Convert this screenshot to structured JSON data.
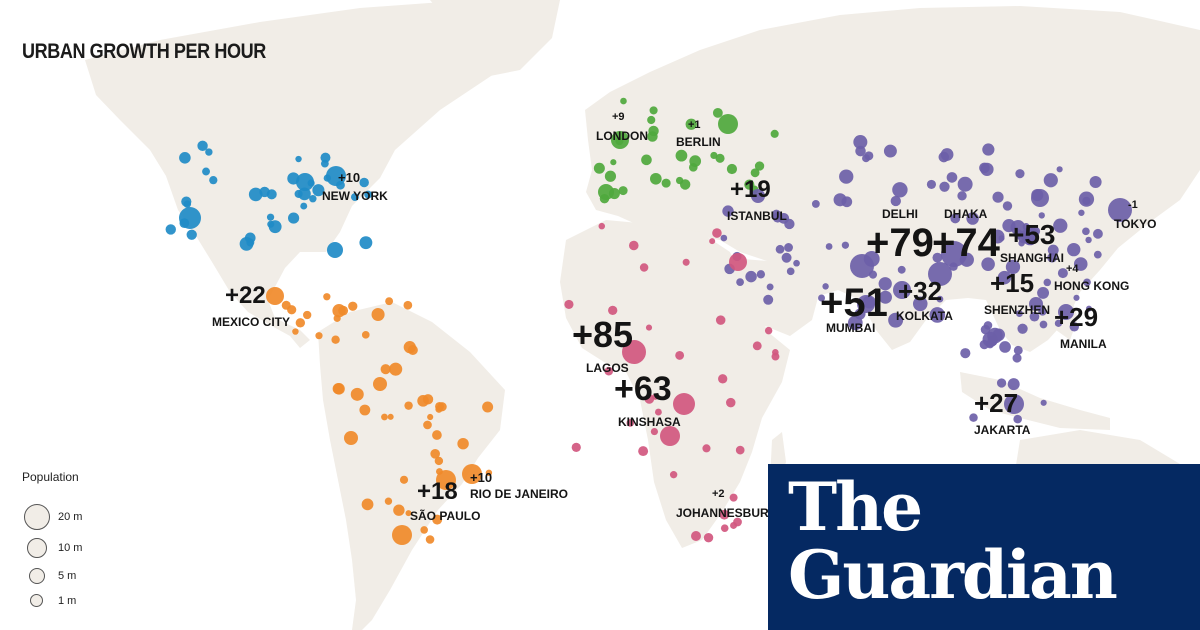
{
  "title": "URBAN GROWTH PER HOUR",
  "legend": {
    "title": "Population",
    "items": [
      {
        "label": "20 m",
        "population_m": 20
      },
      {
        "label": "10 m",
        "population_m": 10
      },
      {
        "label": "5 m",
        "population_m": 5
      },
      {
        "label": "1 m",
        "population_m": 1
      }
    ]
  },
  "brand": {
    "line1": "The",
    "line2": "Guardian",
    "background": "#052962"
  },
  "colors": {
    "land": "#f1ede7",
    "water": "#ffffff",
    "north_america": "#1f8bc7",
    "latin_america": "#f08a2a",
    "europe": "#4fa83d",
    "africa_middle_east": "#d1577f",
    "asia": "#6c5fa8"
  },
  "cities": [
    {
      "name": "NEW YORK",
      "growth": "+10",
      "region": "north_america"
    },
    {
      "name": "MEXICO CITY",
      "growth": "+22",
      "region": "latin_america"
    },
    {
      "name": "SÃO PAULO",
      "growth": "+18",
      "region": "latin_america"
    },
    {
      "name": "RIO DE JANEIRO",
      "growth": "+10",
      "region": "latin_america"
    },
    {
      "name": "LONDON",
      "growth": "+9",
      "region": "europe"
    },
    {
      "name": "BERLIN",
      "growth": "+1",
      "region": "europe"
    },
    {
      "name": "ISTANBUL",
      "growth": "+19",
      "region": "asia"
    },
    {
      "name": "LAGOS",
      "growth": "+85",
      "region": "africa_middle_east"
    },
    {
      "name": "KINSHASA",
      "growth": "+63",
      "region": "africa_middle_east"
    },
    {
      "name": "JOHANNESBURG",
      "growth": "+2",
      "region": "africa_middle_east"
    },
    {
      "name": "DELHI",
      "growth": "+79",
      "region": "asia"
    },
    {
      "name": "DHAKA",
      "growth": "+74",
      "region": "asia"
    },
    {
      "name": "MUMBAI",
      "growth": "+51",
      "region": "asia"
    },
    {
      "name": "KOLKATA",
      "growth": "+32",
      "region": "asia"
    },
    {
      "name": "SHANGHAI",
      "growth": "+53",
      "region": "asia"
    },
    {
      "name": "SHENZHEN",
      "growth": "+15",
      "region": "asia"
    },
    {
      "name": "HONG KONG",
      "growth": "+4",
      "region": "asia"
    },
    {
      "name": "MANILA",
      "growth": "+29",
      "region": "asia"
    },
    {
      "name": "JAKARTA",
      "growth": "+27",
      "region": "asia"
    },
    {
      "name": "TOKYO",
      "growth": "-1",
      "region": "asia"
    }
  ]
}
